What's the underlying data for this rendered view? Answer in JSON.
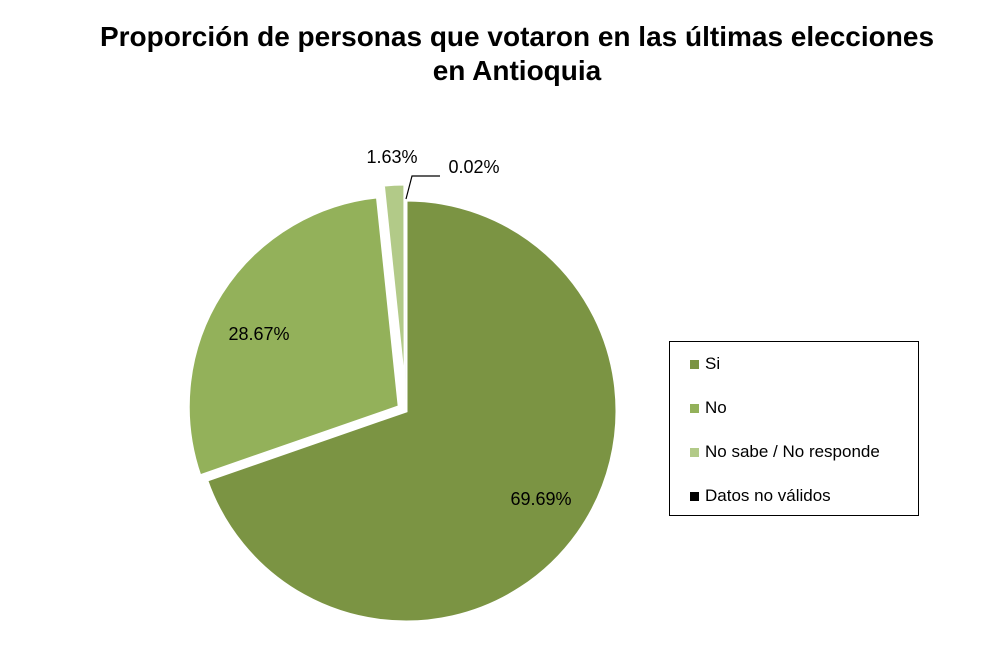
{
  "chart_data": {
    "type": "pie",
    "title": "Proporción de personas que votaron en las últimas elecciones en Antioquia",
    "categories": [
      "Si",
      "No",
      "No sabe / No responde",
      "Datos no válidos"
    ],
    "values": [
      69.69,
      28.67,
      1.63,
      0.02
    ],
    "labels": [
      "69.69%",
      "28.67%",
      "1.63%",
      "0.02%"
    ],
    "colors": [
      "#7b9443",
      "#93b15a",
      "#b2ca88",
      "#000000"
    ],
    "legend_position": "right"
  }
}
